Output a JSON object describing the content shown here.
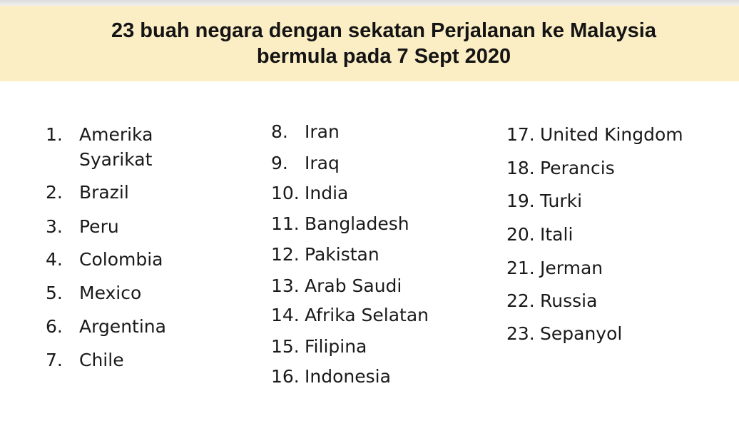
{
  "title": {
    "line1": "23 buah negara dengan sekatan Perjalanan ke Malaysia",
    "line2": "bermula pada 7 Sept 2020"
  },
  "countries": [
    {
      "num": "1.",
      "name": "Amerika",
      "name2": "Syarikat"
    },
    {
      "num": "2.",
      "name": "Brazil"
    },
    {
      "num": "3.",
      "name": "Peru"
    },
    {
      "num": "4.",
      "name": "Colombia"
    },
    {
      "num": "5.",
      "name": "Mexico"
    },
    {
      "num": "6.",
      "name": "Argentina"
    },
    {
      "num": "7.",
      "name": "Chile"
    },
    {
      "num": "8.",
      "name": "Iran"
    },
    {
      "num": "9.",
      "name": "Iraq"
    },
    {
      "num": "10.",
      "name": "India"
    },
    {
      "num": "11.",
      "name": "Bangladesh"
    },
    {
      "num": "12.",
      "name": "Pakistan"
    },
    {
      "num": "13.",
      "name": "Arab Saudi"
    },
    {
      "num": "14.",
      "name": "Afrika Selatan"
    },
    {
      "num": "15.",
      "name": "Filipina"
    },
    {
      "num": "16.",
      "name": "Indonesia"
    },
    {
      "num": "17.",
      "name": "United Kingdom"
    },
    {
      "num": "18.",
      "name": "Perancis"
    },
    {
      "num": "19.",
      "name": "Turki"
    },
    {
      "num": "20.",
      "name": "Itali"
    },
    {
      "num": "21.",
      "name": "Jerman"
    },
    {
      "num": "22.",
      "name": "Russia"
    },
    {
      "num": "23.",
      "name": "Sepanyol"
    }
  ]
}
